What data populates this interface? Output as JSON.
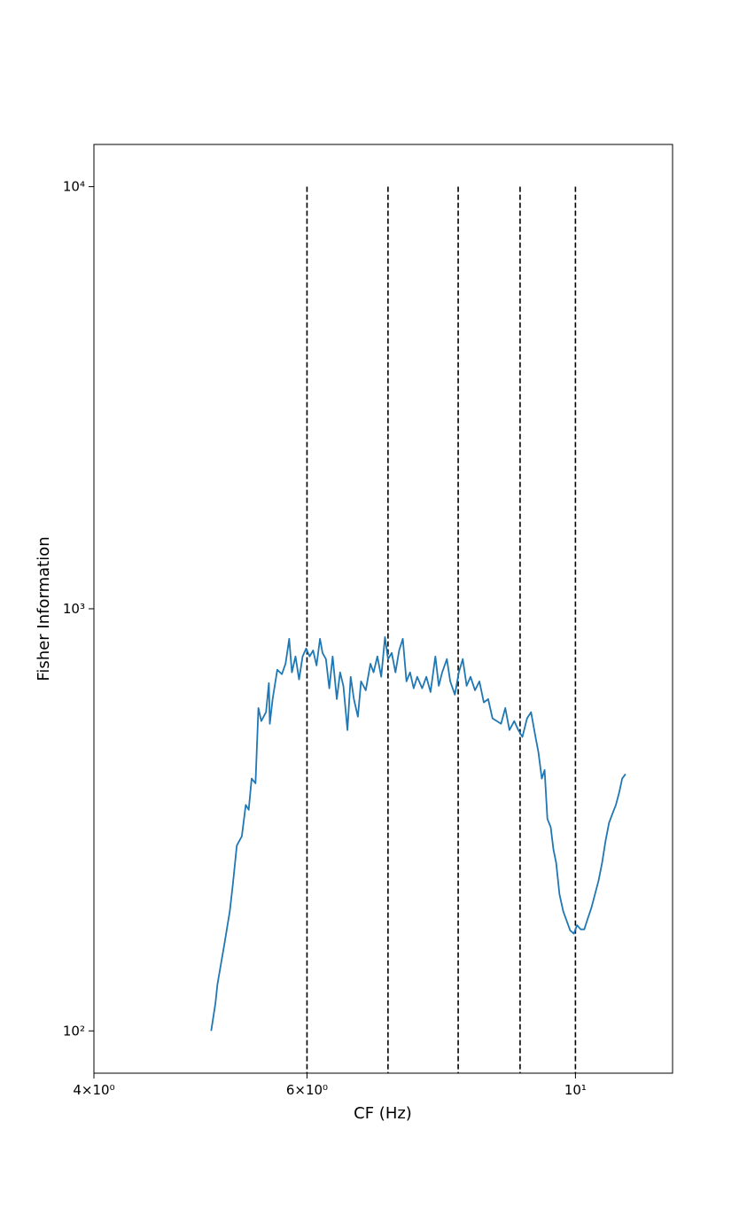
{
  "chart_data": {
    "type": "line",
    "x_label": "CF (Hz)",
    "y_label": "Fisher Information",
    "xscale": "log",
    "yscale": "log",
    "xlim": [
      4,
      12.03
    ],
    "ylim": [
      79.4,
      12589
    ],
    "xticks": [
      {
        "value": 4,
        "label": "4×10⁰"
      },
      {
        "value": 6,
        "label": "6×10⁰"
      },
      {
        "value": 10,
        "label": "10¹"
      }
    ],
    "yticks": [
      {
        "value": 100,
        "label": "10²"
      },
      {
        "value": 1000,
        "label": "10³"
      },
      {
        "value": 10000,
        "label": "10⁴"
      }
    ],
    "grid": false,
    "x": [
      5.0,
      5.04,
      5.06,
      5.13,
      5.18,
      5.21,
      5.25,
      5.3,
      5.34,
      5.37,
      5.4,
      5.44,
      5.47,
      5.5,
      5.55,
      5.58,
      5.59,
      5.62,
      5.67,
      5.72,
      5.76,
      5.8,
      5.83,
      5.87,
      5.91,
      5.95,
      5.99,
      6.03,
      6.07,
      6.11,
      6.15,
      6.18,
      6.22,
      6.26,
      6.3,
      6.35,
      6.39,
      6.43,
      6.48,
      6.52,
      6.56,
      6.61,
      6.65,
      6.71,
      6.77,
      6.81,
      6.86,
      6.91,
      6.96,
      7.0,
      7.05,
      7.1,
      7.15,
      7.2,
      7.25,
      7.3,
      7.35,
      7.4,
      7.47,
      7.53,
      7.59,
      7.66,
      7.71,
      7.76,
      7.83,
      7.88,
      7.95,
      8.01,
      8.07,
      8.13,
      8.19,
      8.26,
      8.33,
      8.4,
      8.47,
      8.54,
      8.61,
      8.68,
      8.75,
      8.82,
      8.9,
      8.97,
      9.04,
      9.12,
      9.19,
      9.26,
      9.32,
      9.38,
      9.43,
      9.48,
      9.54,
      9.59,
      9.64,
      9.7,
      9.77,
      9.83,
      9.9,
      9.97,
      10.03,
      10.1,
      10.17,
      10.24,
      10.31,
      10.38,
      10.45,
      10.52,
      10.59,
      10.66,
      10.73,
      10.8,
      10.87,
      10.93,
      11.0
    ],
    "series": [
      {
        "color": "#1f77b4",
        "values": [
          100,
          116,
          129,
          162,
          192,
          222,
          275,
          289,
          343,
          334,
          396,
          386,
          582,
          542,
          569,
          667,
          534,
          611,
          717,
          700,
          741,
          849,
          707,
          771,
          680,
          771,
          805,
          771,
          797,
          734,
          849,
          786,
          760,
          648,
          771,
          611,
          707,
          657,
          516,
          690,
          611,
          555,
          673,
          641,
          741,
          707,
          771,
          690,
          857,
          760,
          786,
          707,
          797,
          849,
          673,
          707,
          648,
          690,
          648,
          690,
          635,
          771,
          657,
          707,
          760,
          673,
          626,
          707,
          760,
          657,
          690,
          641,
          673,
          600,
          611,
          550,
          542,
          534,
          582,
          516,
          542,
          516,
          497,
          550,
          569,
          504,
          457,
          396,
          415,
          318,
          304,
          269,
          250,
          211,
          192,
          183,
          173,
          170,
          178,
          174,
          174,
          185,
          196,
          211,
          227,
          250,
          282,
          311,
          327,
          343,
          368,
          396,
          406
        ]
      }
    ],
    "vlines": {
      "x": [
        6,
        7,
        8,
        9,
        10
      ],
      "ymax": 10000,
      "color": "#000000",
      "style": "dashed"
    }
  }
}
